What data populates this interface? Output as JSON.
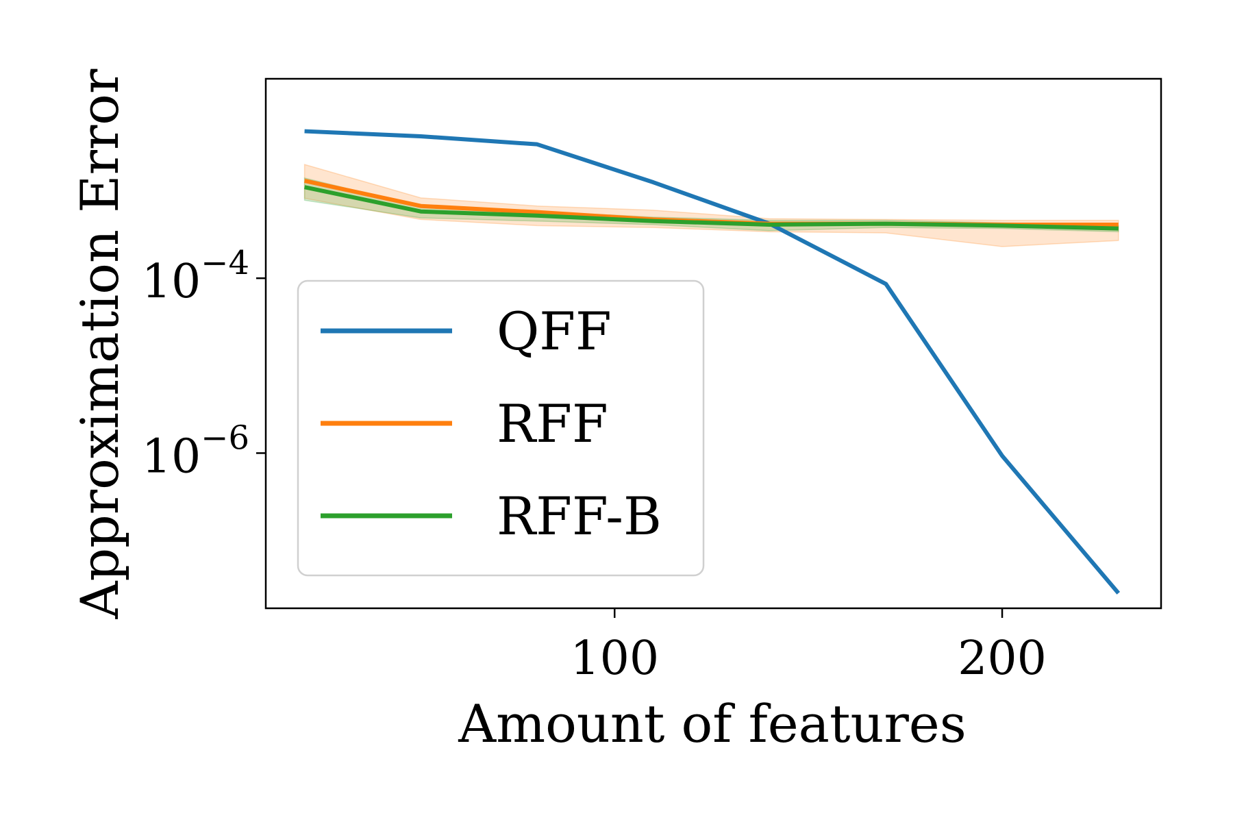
{
  "chart_data": {
    "type": "line",
    "xlabel": "Amount of features",
    "ylabel": "Approximation Error",
    "y_scale": "log",
    "x_range": [
      10,
      241
    ],
    "y_range": [
      1.68e-08,
      0.0191
    ],
    "x_ticks": [
      {
        "value": 100,
        "label": "100"
      },
      {
        "value": 200,
        "label": "200"
      }
    ],
    "y_ticks": [
      {
        "value": 0.0001,
        "base": "10",
        "exp": "−4"
      },
      {
        "value": 1e-06,
        "base": "10",
        "exp": "−6"
      }
    ],
    "grid": false,
    "legend_position": "lower-left",
    "series": [
      {
        "name": "QFF",
        "color": "#1f77b4",
        "x": [
          20,
          50,
          80,
          110,
          140,
          170,
          200,
          230
        ],
        "y": [
          0.0048,
          0.0042,
          0.0034,
          0.00125,
          0.00042,
          8.6e-05,
          9.3e-07,
          2.5e-08
        ]
      },
      {
        "name": "RFF",
        "color": "#ff7f0e",
        "x": [
          20,
          50,
          80,
          110,
          140,
          170,
          200,
          230
        ],
        "y": [
          0.0013,
          0.00067,
          0.00057,
          0.00047,
          0.00042,
          0.00042,
          0.00041,
          0.00041
        ],
        "y_lower": [
          0.00082,
          0.00047,
          0.0004,
          0.00038,
          0.00034,
          0.00033,
          0.00023,
          0.00027
        ],
        "y_upper": [
          0.002,
          0.00083,
          0.00067,
          0.0006,
          0.00048,
          0.00047,
          0.00046,
          0.00046
        ]
      },
      {
        "name": "RFF-B",
        "color": "#2ca02c",
        "x": [
          20,
          50,
          80,
          110,
          140,
          170,
          200,
          230
        ],
        "y": [
          0.0011,
          0.00058,
          0.00052,
          0.00045,
          0.00041,
          0.00042,
          0.0004,
          0.00037
        ],
        "y_lower": [
          0.00078,
          0.00049,
          0.00045,
          0.00041,
          0.00035,
          0.00038,
          0.00037,
          0.00034
        ],
        "y_upper": [
          0.0014,
          0.00066,
          0.00058,
          0.0005,
          0.00046,
          0.00046,
          0.00043,
          0.0004
        ]
      }
    ]
  }
}
